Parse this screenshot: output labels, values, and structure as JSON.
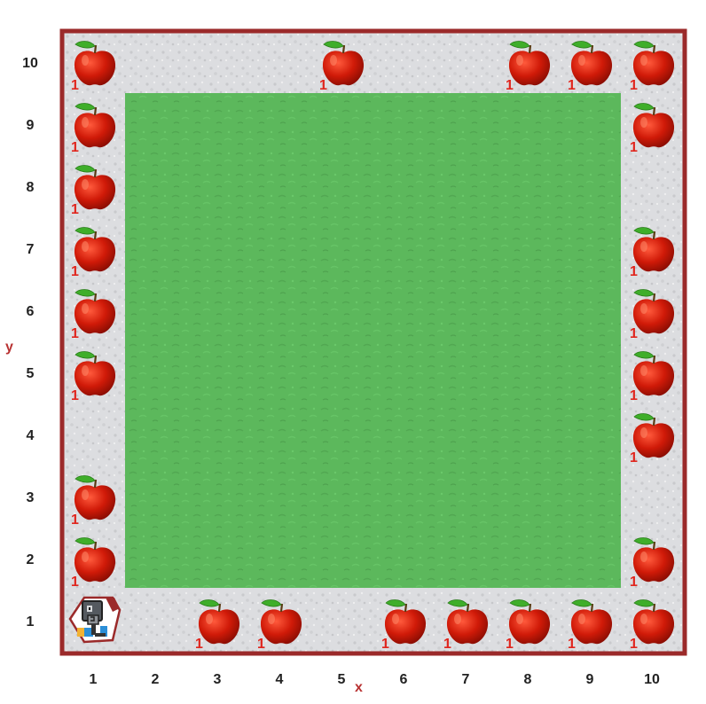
{
  "axes": {
    "x_name": "x",
    "y_name": "y",
    "x_labels": [
      "1",
      "2",
      "3",
      "4",
      "5",
      "6",
      "7",
      "8",
      "9",
      "10"
    ],
    "y_labels": [
      "10",
      "9",
      "8",
      "7",
      "6",
      "5",
      "4",
      "3",
      "2",
      "1"
    ]
  },
  "colors": {
    "border": "#9b2a2a",
    "path": "#d9dadc",
    "grass": "#5cb85c",
    "apple": "#d01a08",
    "apple_count": "#e0261e",
    "axis_name": "#b83232"
  },
  "robot": {
    "x": 1,
    "y": 1,
    "icon": "robot-icon"
  },
  "apples": [
    {
      "x": 1,
      "y": 10,
      "count": "1"
    },
    {
      "x": 5,
      "y": 10,
      "count": "1"
    },
    {
      "x": 8,
      "y": 10,
      "count": "1"
    },
    {
      "x": 9,
      "y": 10,
      "count": "1"
    },
    {
      "x": 10,
      "y": 10,
      "count": "1"
    },
    {
      "x": 1,
      "y": 9,
      "count": "1"
    },
    {
      "x": 10,
      "y": 9,
      "count": "1"
    },
    {
      "x": 1,
      "y": 8,
      "count": "1"
    },
    {
      "x": 1,
      "y": 7,
      "count": "1"
    },
    {
      "x": 10,
      "y": 7,
      "count": "1"
    },
    {
      "x": 1,
      "y": 6,
      "count": "1"
    },
    {
      "x": 10,
      "y": 6,
      "count": "1"
    },
    {
      "x": 1,
      "y": 5,
      "count": "1"
    },
    {
      "x": 10,
      "y": 5,
      "count": "1"
    },
    {
      "x": 10,
      "y": 4,
      "count": "1"
    },
    {
      "x": 1,
      "y": 3,
      "count": "1"
    },
    {
      "x": 1,
      "y": 2,
      "count": "1"
    },
    {
      "x": 10,
      "y": 2,
      "count": "1"
    },
    {
      "x": 3,
      "y": 1,
      "count": "1"
    },
    {
      "x": 4,
      "y": 1,
      "count": "1"
    },
    {
      "x": 6,
      "y": 1,
      "count": "1"
    },
    {
      "x": 7,
      "y": 1,
      "count": "1"
    },
    {
      "x": 8,
      "y": 1,
      "count": "1"
    },
    {
      "x": 9,
      "y": 1,
      "count": "1"
    },
    {
      "x": 10,
      "y": 1,
      "count": "1"
    }
  ]
}
